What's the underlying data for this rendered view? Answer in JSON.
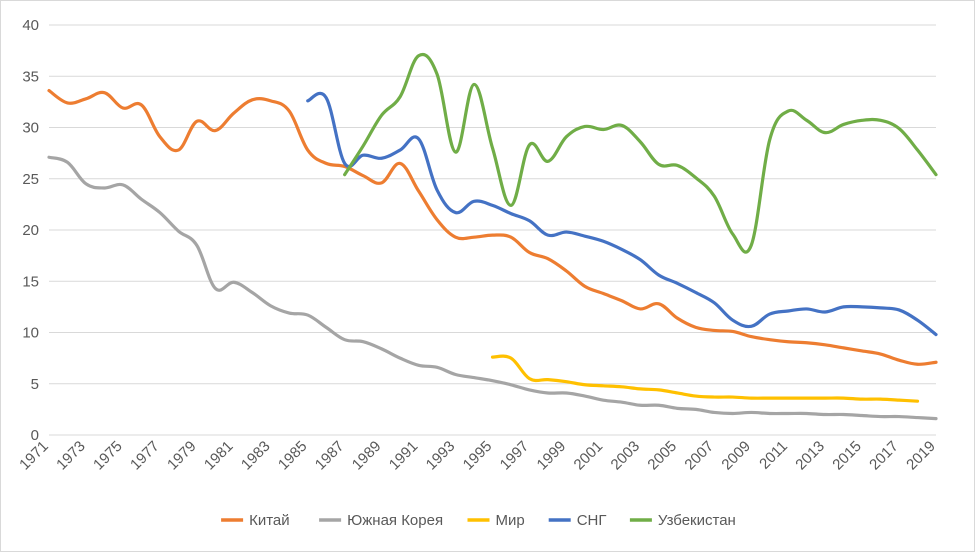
{
  "chart_data": {
    "type": "line",
    "title": "",
    "xlabel": "",
    "ylabel": "",
    "xlim": [
      1971,
      2019
    ],
    "ylim": [
      0,
      40
    ],
    "y_ticks": [
      "0",
      "5",
      "10",
      "15",
      "20",
      "25",
      "30",
      "35",
      "40"
    ],
    "x_ticks": [
      "1971",
      "1973",
      "1975",
      "1977",
      "1979",
      "1981",
      "1983",
      "1985",
      "1987",
      "1989",
      "1991",
      "1993",
      "1995",
      "1997",
      "1999",
      "2001",
      "2003",
      "2005",
      "2007",
      "2009",
      "2011",
      "2013",
      "2015",
      "2017",
      "2019"
    ],
    "grid": "horizontal",
    "legend_position": "bottom",
    "series": [
      {
        "name": "Китай",
        "color": "#ED7D31",
        "x": [
          1971,
          1972,
          1973,
          1974,
          1975,
          1976,
          1977,
          1978,
          1979,
          1980,
          1981,
          1982,
          1983,
          1984,
          1985,
          1986,
          1987,
          1988,
          1989,
          1990,
          1991,
          1992,
          1993,
          1994,
          1995,
          1996,
          1997,
          1998,
          1999,
          2000,
          2001,
          2002,
          2003,
          2004,
          2005,
          2006,
          2007,
          2008,
          2009,
          2010,
          2011,
          2012,
          2013,
          2014,
          2015,
          2016,
          2017,
          2018,
          2019
        ],
        "values": [
          33.6,
          32.4,
          32.8,
          33.4,
          31.9,
          32.2,
          29.1,
          27.8,
          30.6,
          29.7,
          31.4,
          32.7,
          32.6,
          31.6,
          27.8,
          26.5,
          26.2,
          25.3,
          24.6,
          26.5,
          23.8,
          21.0,
          19.3,
          19.3,
          19.5,
          19.3,
          17.8,
          17.2,
          16.0,
          14.5,
          13.8,
          13.1,
          12.3,
          12.8,
          11.4,
          10.5,
          10.2,
          10.1,
          9.6,
          9.3,
          9.1,
          9.0,
          8.8,
          8.5,
          8.2,
          7.9,
          7.3,
          6.9,
          7.1
        ]
      },
      {
        "name": "Южная Корея",
        "color": "#A5A5A5",
        "x": [
          1971,
          1972,
          1973,
          1974,
          1975,
          1976,
          1977,
          1978,
          1979,
          1980,
          1981,
          1982,
          1983,
          1984,
          1985,
          1986,
          1987,
          1988,
          1989,
          1990,
          1991,
          1992,
          1993,
          1994,
          1995,
          1996,
          1997,
          1998,
          1999,
          2000,
          2001,
          2002,
          2003,
          2004,
          2005,
          2006,
          2007,
          2008,
          2009,
          2010,
          2011,
          2012,
          2013,
          2014,
          2015,
          2016,
          2017,
          2018,
          2019
        ],
        "values": [
          27.1,
          26.6,
          24.5,
          24.1,
          24.4,
          23.0,
          21.7,
          19.9,
          18.5,
          14.3,
          14.9,
          13.9,
          12.6,
          11.9,
          11.7,
          10.5,
          9.3,
          9.1,
          8.4,
          7.5,
          6.8,
          6.6,
          5.9,
          5.6,
          5.3,
          4.9,
          4.4,
          4.1,
          4.1,
          3.8,
          3.4,
          3.2,
          2.9,
          2.9,
          2.6,
          2.5,
          2.2,
          2.1,
          2.2,
          2.1,
          2.1,
          2.1,
          2.0,
          2.0,
          1.9,
          1.8,
          1.8,
          1.7,
          1.6
        ]
      },
      {
        "name": "Мир",
        "color": "#FFC000",
        "x": [
          1995,
          1996,
          1997,
          1998,
          1999,
          2000,
          2001,
          2002,
          2003,
          2004,
          2005,
          2006,
          2007,
          2008,
          2009,
          2010,
          2011,
          2012,
          2013,
          2014,
          2015,
          2016,
          2017,
          2018
        ],
        "values": [
          7.6,
          7.5,
          5.5,
          5.4,
          5.2,
          4.9,
          4.8,
          4.7,
          4.5,
          4.4,
          4.1,
          3.8,
          3.7,
          3.7,
          3.6,
          3.6,
          3.6,
          3.6,
          3.6,
          3.6,
          3.5,
          3.5,
          3.4,
          3.3
        ]
      },
      {
        "name": "СНГ",
        "color": "#4472C4",
        "x": [
          1985,
          1986,
          1987,
          1988,
          1989,
          1990,
          1991,
          1992,
          1993,
          1994,
          1995,
          1996,
          1997,
          1998,
          1999,
          2000,
          2001,
          2002,
          2003,
          2004,
          2005,
          2006,
          2007,
          2008,
          2009,
          2010,
          2011,
          2012,
          2013,
          2014,
          2015,
          2016,
          2017,
          2018,
          2019
        ],
        "values": [
          32.6,
          32.9,
          26.5,
          27.3,
          27.0,
          27.8,
          28.9,
          23.9,
          21.7,
          22.8,
          22.4,
          21.6,
          20.9,
          19.5,
          19.8,
          19.4,
          18.9,
          18.1,
          17.1,
          15.6,
          14.8,
          13.9,
          12.9,
          11.2,
          10.6,
          11.8,
          12.1,
          12.3,
          12.0,
          12.5,
          12.5,
          12.4,
          12.2,
          11.2,
          9.8
        ]
      },
      {
        "name": "Узбекистан",
        "color": "#70AD47",
        "x": [
          1987,
          1988,
          1989,
          1990,
          1991,
          1992,
          1993,
          1994,
          1995,
          1996,
          1997,
          1998,
          1999,
          2000,
          2001,
          2002,
          2003,
          2004,
          2005,
          2006,
          2007,
          2008,
          2009,
          2010,
          2011,
          2012,
          2013,
          2014,
          2015,
          2016,
          2017,
          2018,
          2019
        ],
        "values": [
          25.4,
          28.2,
          31.2,
          33.0,
          37.0,
          35.2,
          27.6,
          34.2,
          28.0,
          22.4,
          28.3,
          26.7,
          29.1,
          30.1,
          29.8,
          30.2,
          28.6,
          26.4,
          26.3,
          25.1,
          23.3,
          19.6,
          18.5,
          28.8,
          31.6,
          30.7,
          29.5,
          30.3,
          30.7,
          30.7,
          29.9,
          27.8,
          25.4
        ]
      }
    ]
  }
}
